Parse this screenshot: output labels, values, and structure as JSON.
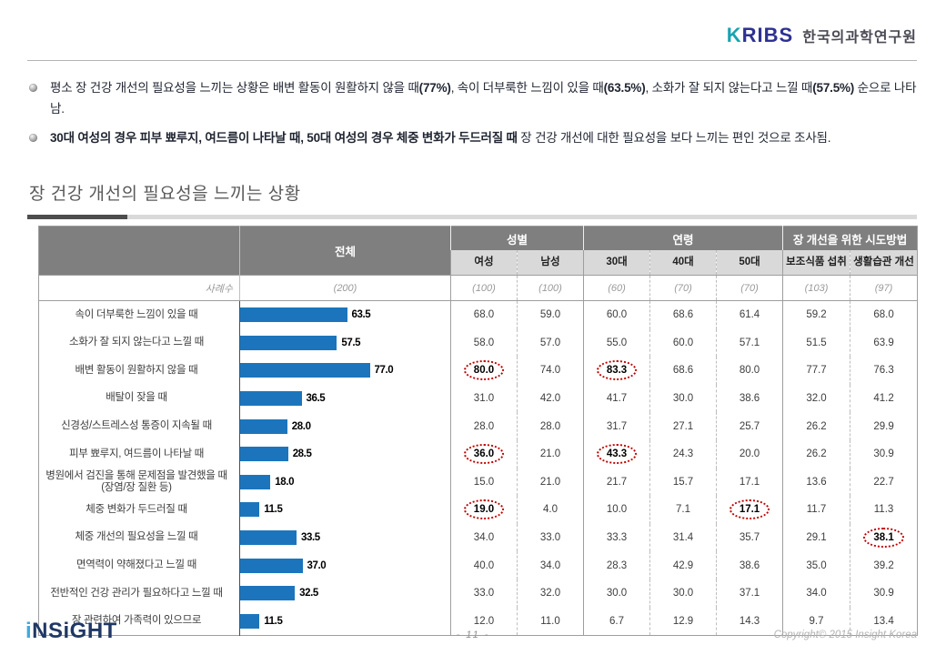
{
  "brand": {
    "logo_text": "KRIBS",
    "logo_k": "K",
    "logo_ribs": "RIBS",
    "org_name": "한국의과학연구원"
  },
  "bullets": [
    {
      "segments": [
        {
          "text": "평소 장 건강 개선의 필요성을 느끼는 상황은 배변 활동이 원활하지 않을 때",
          "bold": false
        },
        {
          "text": "(77%)",
          "bold": true
        },
        {
          "text": ", 속이 더부룩한 느낌이 있을 때",
          "bold": false
        },
        {
          "text": "(63.5%)",
          "bold": true
        },
        {
          "text": ", 소화가 잘 되지 않는다고 느낄 때",
          "bold": false
        },
        {
          "text": "(57.5%)",
          "bold": true
        },
        {
          "text": " 순으로 나타남.",
          "bold": false
        }
      ]
    },
    {
      "segments": [
        {
          "text": "30대 여성의 경우 피부 뾰루지, 여드름이 나타날 때, 50대 여성의 경우 체중 변화가 두드러질 때",
          "bold": true
        },
        {
          "text": " 장 건강 개선에 대한 필요성을 보다 느끼는 편인 것으로 조사됨.",
          "bold": false
        }
      ]
    }
  ],
  "section": {
    "title": "장 건강 개선의 필요성을 느끼는 상황"
  },
  "table": {
    "total_label": "전체",
    "groups": [
      {
        "label": "성별"
      },
      {
        "label": "연령"
      },
      {
        "label": "장 개선을 위한 시도방법"
      }
    ],
    "col_headers": [
      "여성",
      "남성",
      "30대",
      "40대",
      "50대",
      "보조식품 섭취",
      "생활습관 개선"
    ],
    "base_label": "사례수",
    "base_total": "(200)",
    "base_values": [
      "(100)",
      "(100)",
      "(60)",
      "(70)",
      "(70)",
      "(103)",
      "(97)"
    ],
    "rows": [
      {
        "label": "속이 더부룩한 느낌이 있을 때",
        "total": 63.5,
        "values": [
          68.0,
          59.0,
          60.0,
          68.6,
          61.4,
          59.2,
          68.0
        ],
        "circled": []
      },
      {
        "label": "소화가 잘 되지 않는다고 느낄 때",
        "total": 57.5,
        "values": [
          58.0,
          57.0,
          55.0,
          60.0,
          57.1,
          51.5,
          63.9
        ],
        "circled": []
      },
      {
        "label": "배변 활동이 원활하지 않을 때",
        "total": 77.0,
        "values": [
          80.0,
          74.0,
          83.3,
          68.6,
          80.0,
          77.7,
          76.3
        ],
        "circled": [
          0,
          2
        ]
      },
      {
        "label": "배탈이 잦을 때",
        "total": 36.5,
        "values": [
          31.0,
          42.0,
          41.7,
          30.0,
          38.6,
          32.0,
          41.2
        ],
        "circled": []
      },
      {
        "label": "신경성/스트레스성 통증이 지속될 때",
        "total": 28.0,
        "values": [
          28.0,
          28.0,
          31.7,
          27.1,
          25.7,
          26.2,
          29.9
        ],
        "circled": []
      },
      {
        "label": "피부 뾰루지, 여드름이 나타날 때",
        "total": 28.5,
        "values": [
          36.0,
          21.0,
          43.3,
          24.3,
          20.0,
          26.2,
          30.9
        ],
        "circled": [
          0,
          2
        ]
      },
      {
        "label": "병원에서 검진을 통해 문제점을 발견했을 때(장염/장 질환 등)",
        "total": 18.0,
        "values": [
          15.0,
          21.0,
          21.7,
          15.7,
          17.1,
          13.6,
          22.7
        ],
        "circled": []
      },
      {
        "label": "체중 변화가 두드러질 때",
        "total": 11.5,
        "values": [
          19.0,
          4.0,
          10.0,
          7.1,
          17.1,
          11.7,
          11.3
        ],
        "circled": [
          0,
          4
        ]
      },
      {
        "label": "체중 개선의 필요성을 느낄 때",
        "total": 33.5,
        "values": [
          34.0,
          33.0,
          33.3,
          31.4,
          35.7,
          29.1,
          38.1
        ],
        "circled": [
          6
        ]
      },
      {
        "label": "면역력이 약해졌다고 느낄 때",
        "total": 37.0,
        "values": [
          40.0,
          34.0,
          28.3,
          42.9,
          38.6,
          35.0,
          39.2
        ],
        "circled": []
      },
      {
        "label": "전반적인 건강 관리가 필요하다고 느낄 때",
        "total": 32.5,
        "values": [
          33.0,
          32.0,
          30.0,
          30.0,
          37.1,
          34.0,
          30.9
        ],
        "circled": []
      },
      {
        "label": "장 관련하여 가족력이 있으므로",
        "total": 11.5,
        "values": [
          12.0,
          11.0,
          6.7,
          12.9,
          14.3,
          9.7,
          13.4
        ],
        "circled": []
      }
    ]
  },
  "chart_data": {
    "type": "bar",
    "orientation": "horizontal",
    "title": "장 건강 개선의 필요성을 느끼는 상황",
    "series_name": "전체 (%)",
    "categories": [
      "속이 더부룩한 느낌이 있을 때",
      "소화가 잘 되지 않는다고 느낄 때",
      "배변 활동이 원활하지 않을 때",
      "배탈이 잦을 때",
      "신경성/스트레스성 통증이 지속될 때",
      "피부 뾰루지, 여드름이 나타날 때",
      "병원에서 검진을 통해 문제점을 발견했을 때(장염/장 질환 등)",
      "체중 변화가 두드러질 때",
      "체중 개선의 필요성을 느낄 때",
      "면역력이 약해졌다고 느낄 때",
      "전반적인 건강 관리가 필요하다고 느낄 때",
      "장 관련하여 가족력이 있으므로"
    ],
    "values": [
      63.5,
      57.5,
      77.0,
      36.5,
      28.0,
      28.5,
      18.0,
      11.5,
      33.5,
      37.0,
      32.5,
      11.5
    ],
    "xlim": [
      0,
      100
    ],
    "bar_color": "#1c75bc",
    "highlight_circle_color": "#c00000",
    "grid": false,
    "legend": "none"
  },
  "footer": {
    "logo_i": "i",
    "logo_rest": "NSiGHT",
    "page": "- 11 -",
    "copyright": "Copyright© 2015 Insight Korea"
  },
  "colors": {
    "bar_blue": "#1c75bc",
    "circle_red": "#c00000",
    "header_dark_gray": "#7f7f7f",
    "header_light_gray": "#d9d9d9",
    "brand_teal": "#19a3b1",
    "brand_navy": "#2e3192"
  }
}
